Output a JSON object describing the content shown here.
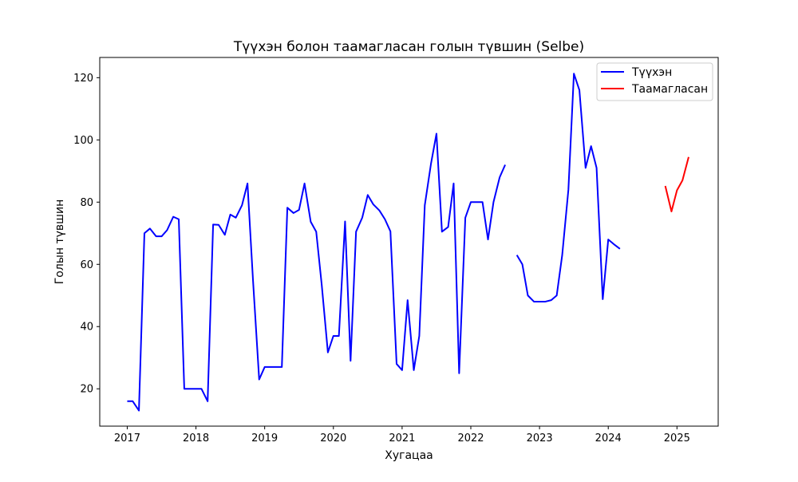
{
  "chart_data": {
    "type": "line",
    "title": "Түүхэн болон таамагласан голын түвшин (Selbe)",
    "xlabel": "Хугацаа",
    "ylabel": "Голын түвшин",
    "xlim": [
      2016.6,
      2025.6
    ],
    "ylim": [
      8,
      126.5
    ],
    "x_ticks": [
      2017,
      2018,
      2019,
      2020,
      2021,
      2022,
      2023,
      2024,
      2025
    ],
    "y_ticks": [
      20,
      40,
      60,
      80,
      100,
      120
    ],
    "grid": false,
    "legend_position": "top-right",
    "series": [
      {
        "name": "Түүхэн",
        "color": "#0000ff",
        "segments": [
          {
            "x": [
              2017.0,
              2017.08,
              2017.17,
              2017.25,
              2017.33,
              2017.42,
              2017.5,
              2017.58,
              2017.67,
              2017.75,
              2017.83,
              2017.92,
              2018.0,
              2018.08,
              2018.17,
              2018.25,
              2018.33,
              2018.42,
              2018.5,
              2018.58,
              2018.67,
              2018.75,
              2018.83,
              2018.92,
              2019.0,
              2019.08,
              2019.17,
              2019.25,
              2019.33,
              2019.42,
              2019.5,
              2019.58,
              2019.67,
              2019.75,
              2019.83,
              2019.92,
              2020.0,
              2020.08,
              2020.17,
              2020.25,
              2020.33,
              2020.42,
              2020.5,
              2020.58,
              2020.67,
              2020.75,
              2020.83,
              2020.92,
              2021.0,
              2021.08,
              2021.17,
              2021.25,
              2021.33,
              2021.42,
              2021.5,
              2021.58,
              2021.67,
              2021.75,
              2021.83,
              2021.92,
              2022.0,
              2022.08,
              2022.17,
              2022.25,
              2022.33,
              2022.42,
              2022.5
            ],
            "y": [
              16,
              16,
              13,
              70,
              71.5,
              69,
              69,
              71,
              75.3,
              74.5,
              20,
              20,
              20,
              20,
              16,
              72.8,
              72.7,
              69.5,
              76,
              75,
              79,
              86,
              55,
              23,
              27,
              27,
              27,
              27,
              78.2,
              76.5,
              77.5,
              86,
              73.7,
              70.5,
              53.5,
              31.7,
              37,
              37,
              73.8,
              29,
              70.5,
              75,
              82.3,
              79.3,
              77.3,
              74.5,
              70.6,
              28,
              26,
              48.5,
              26,
              37,
              79,
              92.3,
              102,
              70.5,
              72,
              86,
              25,
              75,
              80,
              80,
              80,
              68,
              80,
              88,
              92
            ]
          },
          {
            "x": [
              2022.67,
              2022.75,
              2022.83,
              2022.92,
              2023.0,
              2023.08,
              2023.17,
              2023.25,
              2023.33,
              2023.42,
              2023.5,
              2023.58,
              2023.67,
              2023.75,
              2023.83,
              2023.92,
              2024.0,
              2024.08,
              2024.17
            ],
            "y": [
              63,
              60,
              50,
              48,
              48,
              48,
              48.5,
              50,
              63,
              84,
              121.3,
              116,
              91,
              98,
              91,
              48.8,
              68,
              66.5,
              65
            ]
          }
        ]
      },
      {
        "name": "Таамагласан",
        "color": "#ff0000",
        "segments": [
          {
            "x": [
              2024.83,
              2024.92,
              2025.0,
              2025.08,
              2025.17
            ],
            "y": [
              85.2,
              77,
              83.8,
              87,
              94.5
            ]
          }
        ]
      }
    ]
  }
}
